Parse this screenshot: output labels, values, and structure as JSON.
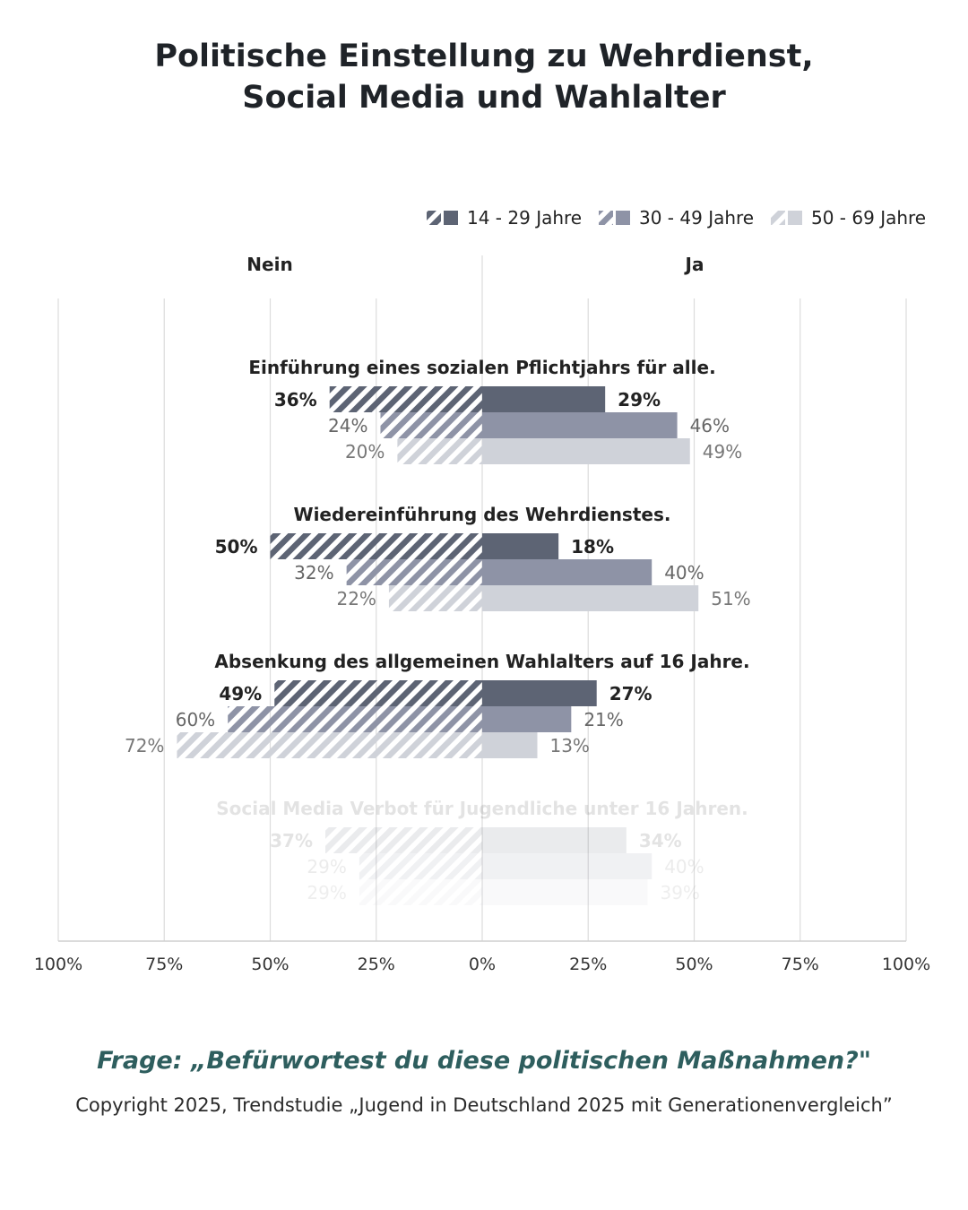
{
  "title": {
    "line1": "Politische Einstellung zu Wehrdienst,",
    "line2": "Social Media und Wahlalter"
  },
  "colors": {
    "age_14_29": "#5d6474",
    "age_30_49": "#8e93a6",
    "age_50_69": "#cfd2d9"
  },
  "chart_data": {
    "type": "bar",
    "orientation": "horizontal-diverging",
    "side_labels": {
      "left": "Nein",
      "right": "Ja"
    },
    "xlim": [
      -100,
      100
    ],
    "x_ticks": [
      "100%",
      "75%",
      "50%",
      "25%",
      "0%",
      "25%",
      "50%",
      "75%",
      "100%"
    ],
    "legend": {
      "position": "top-right",
      "entries": [
        "14 - 29 Jahre",
        "30 - 49 Jahre",
        "50 - 69 Jahre"
      ]
    },
    "groups": [
      {
        "label": "Einführung eines sozialen Pflichtjahrs für alle.",
        "faded": false,
        "series": [
          {
            "name": "14 - 29 Jahre",
            "nein": 36,
            "ja": 29
          },
          {
            "name": "30 - 49 Jahre",
            "nein": 24,
            "ja": 46
          },
          {
            "name": "50 - 69 Jahre",
            "nein": 20,
            "ja": 49
          }
        ]
      },
      {
        "label": "Wiedereinführung des Wehrdienstes.",
        "faded": false,
        "series": [
          {
            "name": "14 - 29 Jahre",
            "nein": 50,
            "ja": 18
          },
          {
            "name": "30 - 49 Jahre",
            "nein": 32,
            "ja": 40
          },
          {
            "name": "50 - 69 Jahre",
            "nein": 22,
            "ja": 51
          }
        ]
      },
      {
        "label": "Absenkung des allgemeinen Wahlalters auf 16 Jahre.",
        "faded": false,
        "series": [
          {
            "name": "14 - 29 Jahre",
            "nein": 49,
            "ja": 27
          },
          {
            "name": "30 - 49 Jahre",
            "nein": 60,
            "ja": 21
          },
          {
            "name": "50 - 69 Jahre",
            "nein": 72,
            "ja": 13
          }
        ]
      },
      {
        "label": "Social Media Verbot für Jugendliche unter 16 Jahren.",
        "faded": true,
        "series": [
          {
            "name": "14 - 29 Jahre",
            "nein": 37,
            "ja": 34
          },
          {
            "name": "30 - 49 Jahre",
            "nein": 29,
            "ja": 40
          },
          {
            "name": "50 - 69 Jahre",
            "nein": 29,
            "ja": 39
          }
        ]
      }
    ]
  },
  "footer": {
    "question": "Frage: „Befürwortest du diese politischen Maßnahmen?\"",
    "copyright": "Copyright 2025, Trendstudie „Jugend in Deutschland 2025 mit Generationenvergleich”"
  }
}
